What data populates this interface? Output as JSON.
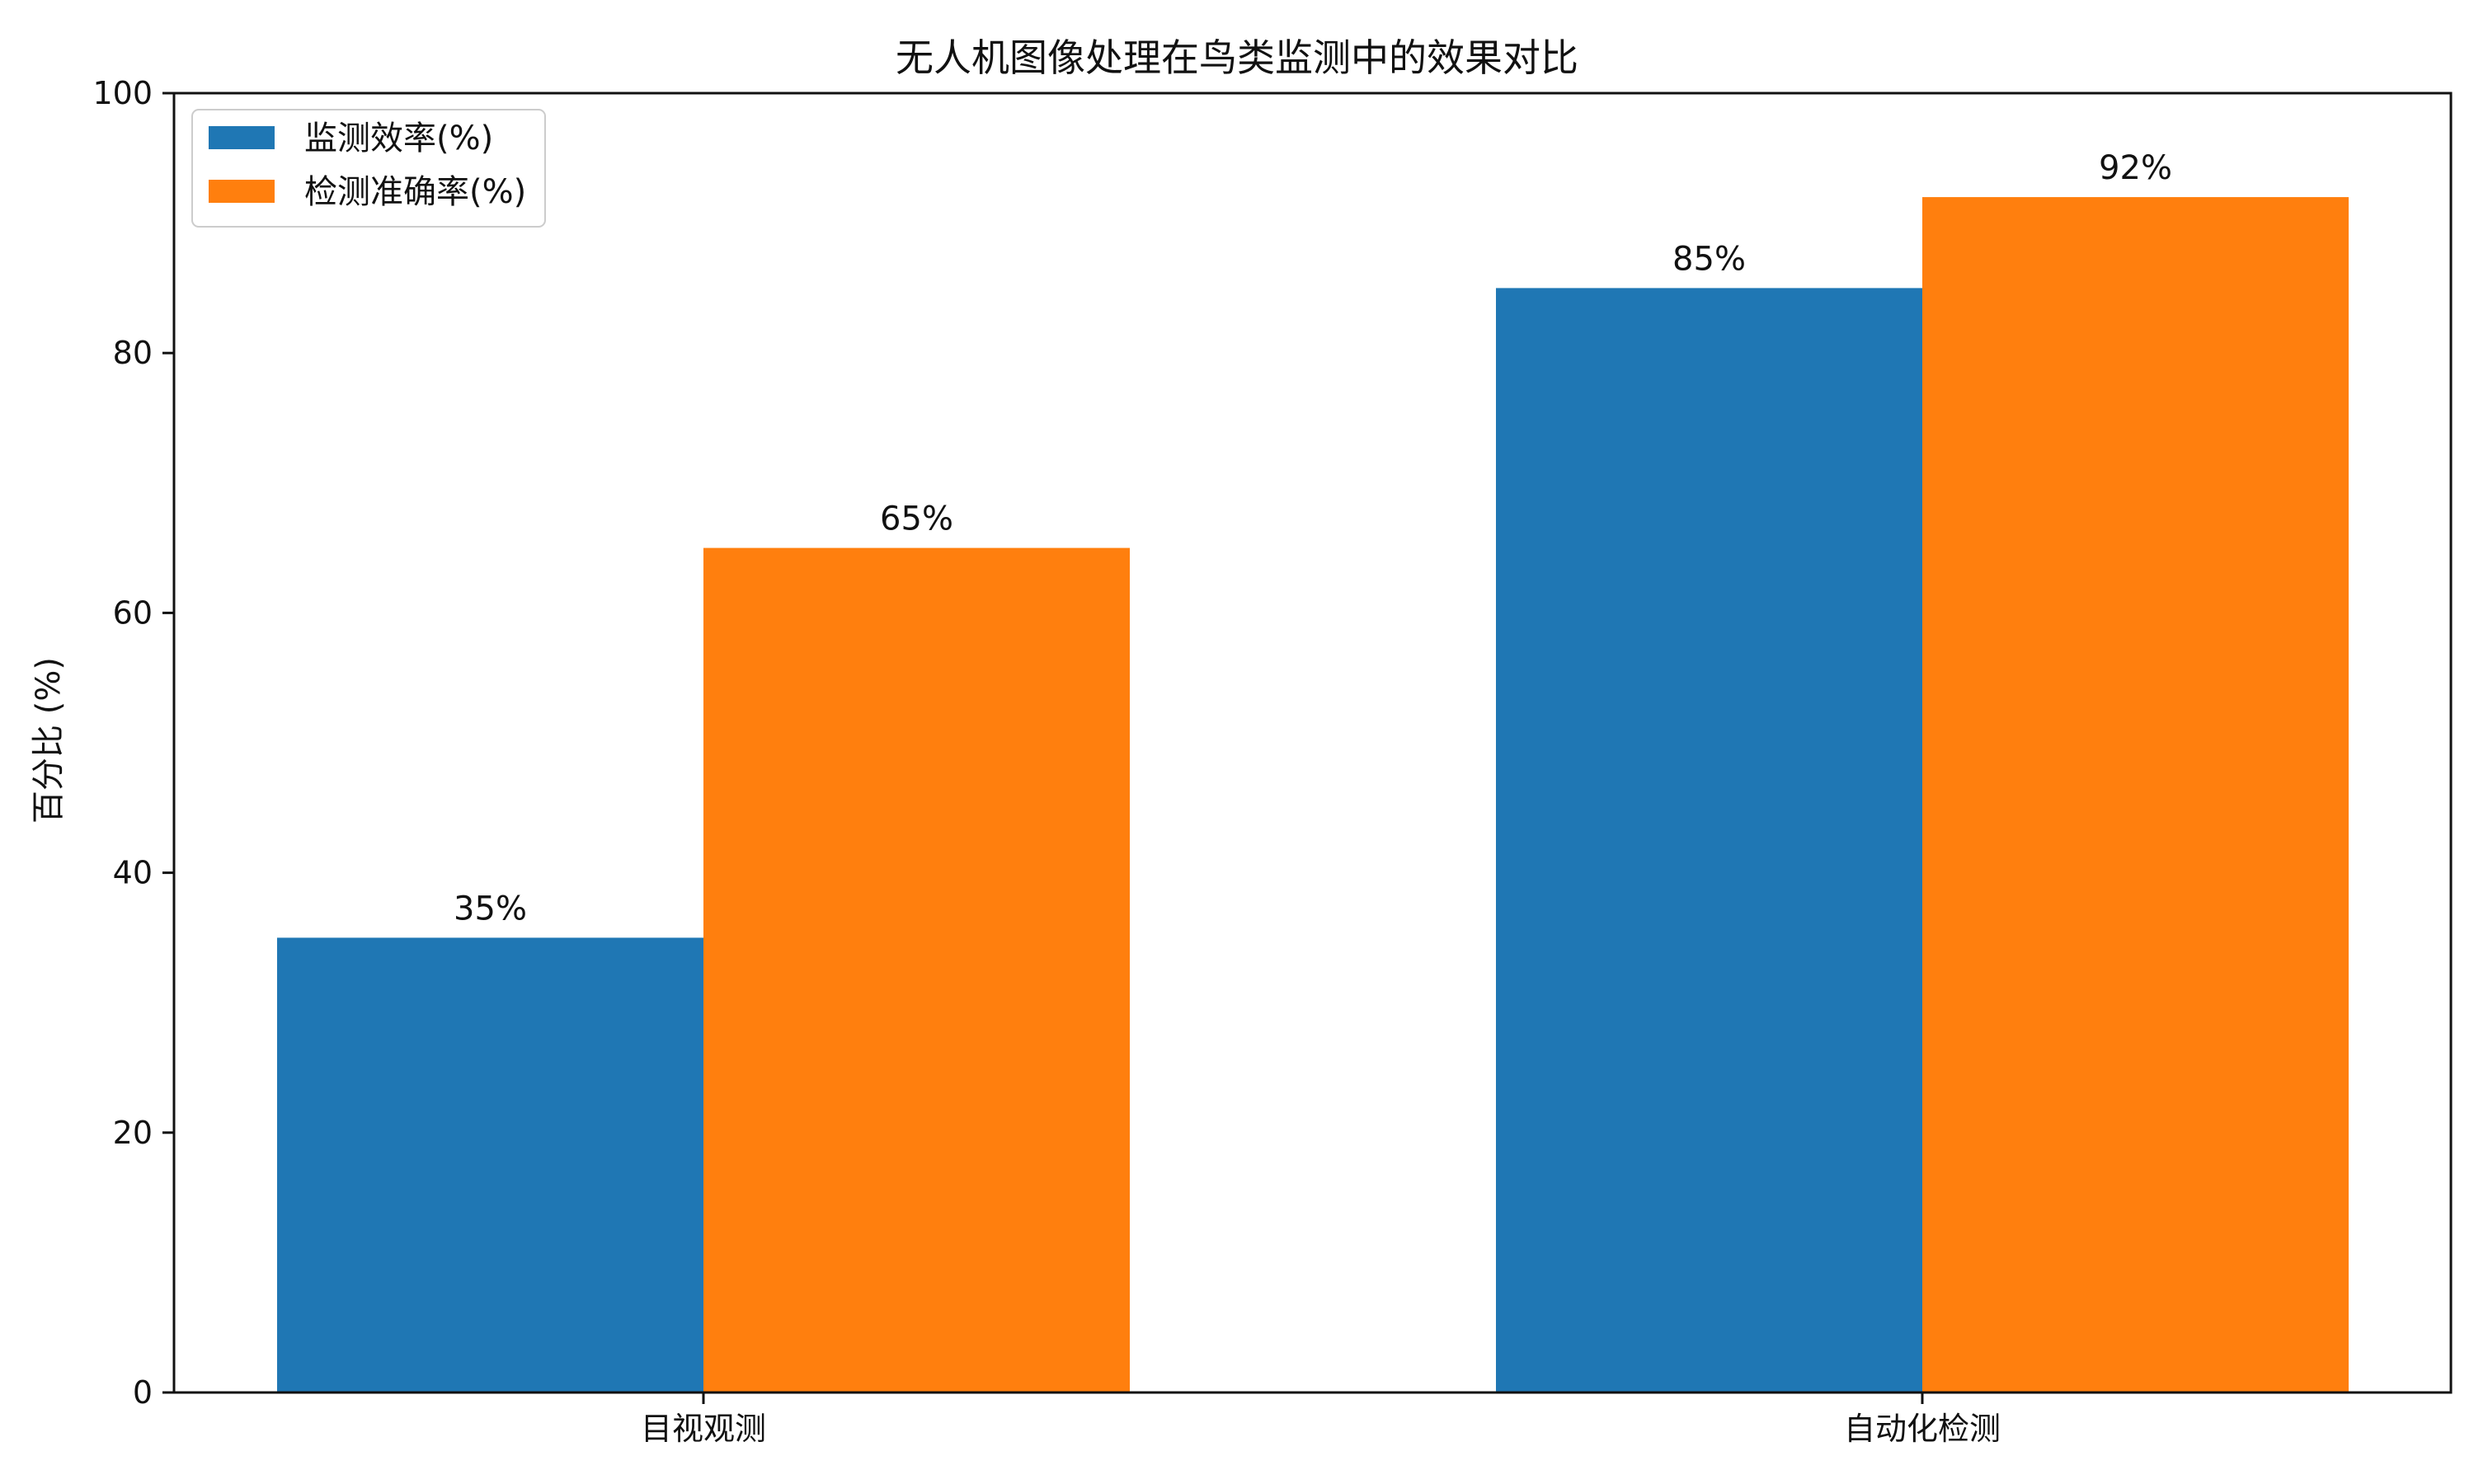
{
  "chart_data": {
    "type": "bar",
    "title": "无人机图像处理在鸟类监测中的效果对比",
    "xlabel": "",
    "ylabel": "百分比 (%)",
    "categories": [
      "目视观测",
      "自动化检测"
    ],
    "series": [
      {
        "name": "监测效率(%)",
        "values": [
          35,
          85
        ],
        "labels": [
          "35%",
          "85%"
        ],
        "color": "#1f77b4"
      },
      {
        "name": "检测准确率(%)",
        "values": [
          65,
          92
        ],
        "labels": [
          "65%",
          "92%"
        ],
        "color": "#ff7f0e"
      }
    ],
    "ylim": [
      0,
      100
    ],
    "yticks": [
      0,
      20,
      40,
      60,
      80,
      100
    ],
    "ytick_labels": [
      "0",
      "20",
      "40",
      "60",
      "80",
      "100"
    ],
    "grid": false,
    "legend_position": "top-left"
  }
}
